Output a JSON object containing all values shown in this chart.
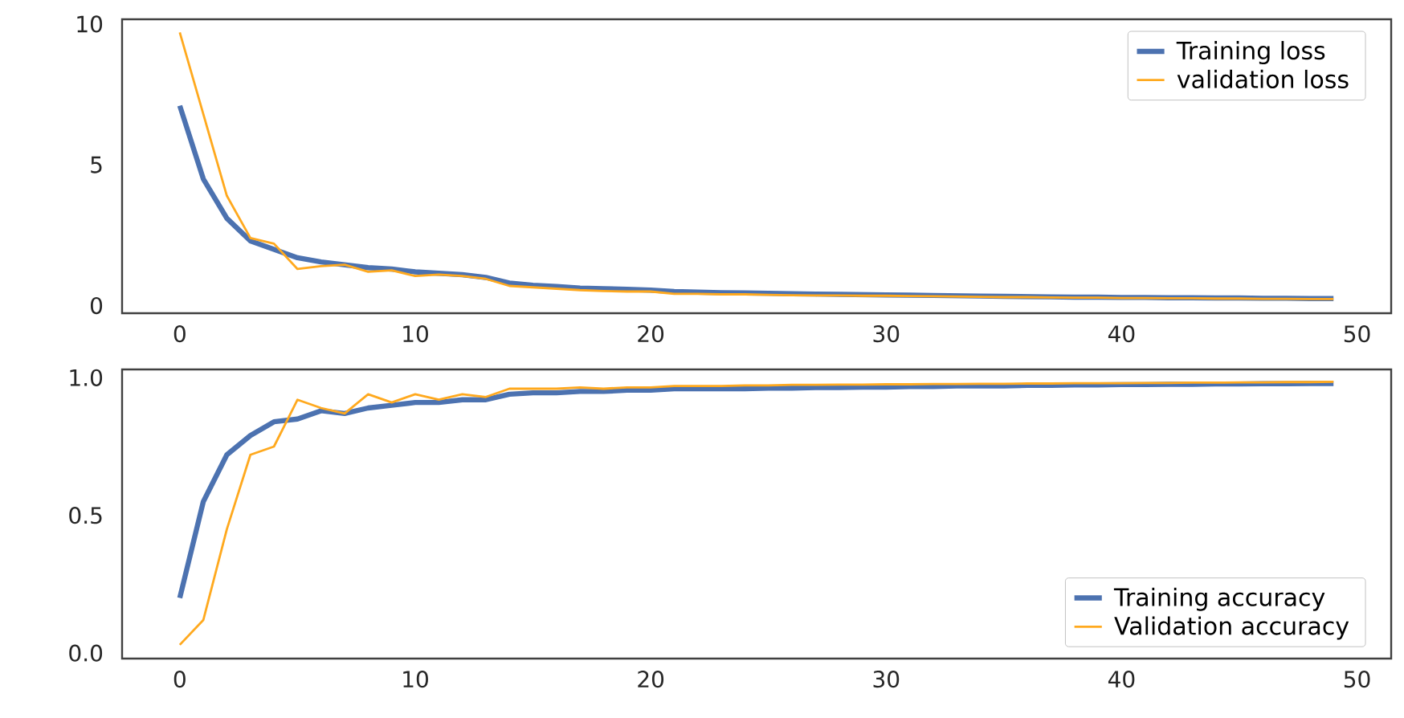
{
  "chart_data": [
    {
      "type": "line",
      "x": [
        0,
        1,
        2,
        3,
        4,
        5,
        6,
        7,
        8,
        9,
        10,
        11,
        12,
        13,
        14,
        15,
        16,
        17,
        18,
        19,
        20,
        21,
        22,
        23,
        24,
        25,
        26,
        27,
        28,
        29,
        30,
        31,
        32,
        33,
        34,
        35,
        36,
        37,
        38,
        39,
        40,
        41,
        42,
        43,
        44,
        45,
        46,
        47,
        48,
        49
      ],
      "series": [
        {
          "name": "Training loss",
          "color": "#4c72b0",
          "values": [
            7.1,
            4.5,
            3.1,
            2.3,
            2.0,
            1.7,
            1.55,
            1.45,
            1.35,
            1.3,
            1.2,
            1.15,
            1.1,
            1.0,
            0.8,
            0.72,
            0.68,
            0.62,
            0.6,
            0.58,
            0.55,
            0.5,
            0.48,
            0.46,
            0.45,
            0.44,
            0.42,
            0.41,
            0.4,
            0.39,
            0.38,
            0.37,
            0.36,
            0.35,
            0.34,
            0.33,
            0.32,
            0.31,
            0.3,
            0.3,
            0.29,
            0.29,
            0.28,
            0.28,
            0.27,
            0.27,
            0.26,
            0.26,
            0.25,
            0.25
          ]
        },
        {
          "name": "validation loss",
          "color": "#ffa91e",
          "values": [
            9.7,
            6.8,
            3.9,
            2.4,
            2.2,
            1.3,
            1.4,
            1.45,
            1.2,
            1.25,
            1.05,
            1.1,
            1.05,
            0.95,
            0.7,
            0.65,
            0.6,
            0.55,
            0.52,
            0.5,
            0.5,
            0.42,
            0.42,
            0.4,
            0.4,
            0.38,
            0.37,
            0.36,
            0.36,
            0.35,
            0.35,
            0.34,
            0.33,
            0.32,
            0.31,
            0.3,
            0.3,
            0.29,
            0.28,
            0.28,
            0.27,
            0.27,
            0.26,
            0.26,
            0.25,
            0.25,
            0.24,
            0.24,
            0.23,
            0.23
          ]
        }
      ],
      "xlim": [
        -2.45,
        51.45
      ],
      "ylim": [
        -0.27,
        10.17
      ],
      "xticks": [
        0,
        10,
        20,
        30,
        40,
        50
      ],
      "yticks": [
        0,
        5,
        10
      ],
      "legend": "top right"
    },
    {
      "type": "line",
      "x": [
        0,
        1,
        2,
        3,
        4,
        5,
        6,
        7,
        8,
        9,
        10,
        11,
        12,
        13,
        14,
        15,
        16,
        17,
        18,
        19,
        20,
        21,
        22,
        23,
        24,
        25,
        26,
        27,
        28,
        29,
        30,
        31,
        32,
        33,
        34,
        35,
        36,
        37,
        38,
        39,
        40,
        41,
        42,
        43,
        44,
        45,
        46,
        47,
        48,
        49
      ],
      "series": [
        {
          "name": "Training accuracy",
          "color": "#4c72b0",
          "values": [
            0.2,
            0.55,
            0.72,
            0.79,
            0.84,
            0.85,
            0.88,
            0.87,
            0.89,
            0.9,
            0.91,
            0.91,
            0.92,
            0.92,
            0.94,
            0.945,
            0.945,
            0.95,
            0.95,
            0.955,
            0.955,
            0.96,
            0.96,
            0.96,
            0.96,
            0.962,
            0.962,
            0.964,
            0.964,
            0.966,
            0.966,
            0.968,
            0.968,
            0.97,
            0.97,
            0.97,
            0.972,
            0.972,
            0.974,
            0.974,
            0.975,
            0.975,
            0.976,
            0.976,
            0.977,
            0.977,
            0.978,
            0.978,
            0.979,
            0.979
          ]
        },
        {
          "name": "Validation accuracy",
          "color": "#ffa91e",
          "values": [
            0.03,
            0.12,
            0.45,
            0.72,
            0.75,
            0.92,
            0.89,
            0.87,
            0.94,
            0.91,
            0.94,
            0.92,
            0.94,
            0.93,
            0.96,
            0.96,
            0.96,
            0.965,
            0.96,
            0.965,
            0.965,
            0.97,
            0.97,
            0.97,
            0.972,
            0.972,
            0.974,
            0.974,
            0.975,
            0.975,
            0.976,
            0.976,
            0.977,
            0.977,
            0.978,
            0.978,
            0.979,
            0.979,
            0.98,
            0.98,
            0.98,
            0.981,
            0.981,
            0.982,
            0.982,
            0.983,
            0.983,
            0.984,
            0.984,
            0.985
          ]
        }
      ],
      "xlim": [
        -2.45,
        51.45
      ],
      "ylim": [
        -0.02,
        1.03
      ],
      "xticks": [
        0,
        10,
        20,
        30,
        40,
        50
      ],
      "yticks": [
        {
          "value": 0,
          "label": "0.0"
        },
        0.5,
        {
          "value": 1,
          "label": "1.0"
        }
      ],
      "legend": "bottom right"
    }
  ]
}
